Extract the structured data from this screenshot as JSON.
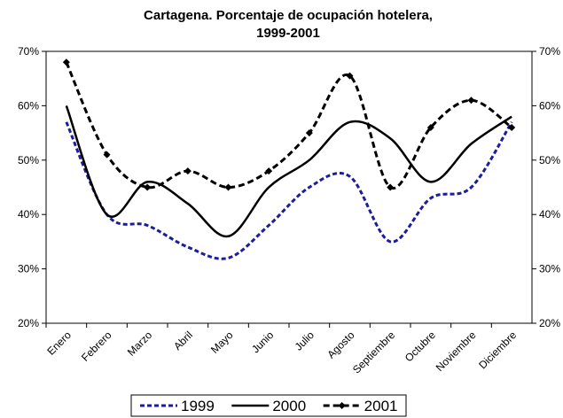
{
  "chart_data": {
    "type": "line",
    "title": [
      "Cartagena. Porcentaje de ocupación hotelera,",
      "1999-2001"
    ],
    "categories": [
      "Enero",
      "Febrero",
      "Marzo",
      "Abril",
      "Mayo",
      "Junio",
      "Julio",
      "Agosto",
      "Septiembre",
      "Octubre",
      "Noviembre",
      "Diciembre"
    ],
    "series": [
      {
        "name": "1999",
        "color": "#1c1c9e",
        "dash": "dashed",
        "values": [
          57,
          40,
          38,
          34,
          32,
          38,
          45,
          47,
          35,
          43,
          45,
          57
        ]
      },
      {
        "name": "2000",
        "color": "#000000",
        "dash": "solid",
        "values": [
          60,
          40,
          46,
          42,
          36,
          45,
          50,
          57,
          54,
          46,
          53,
          58
        ]
      },
      {
        "name": "2001",
        "color": "#000000",
        "dash": "dashed",
        "marker": "diamond",
        "values": [
          68,
          51,
          45,
          48,
          45,
          48,
          55,
          65.5,
          45,
          56,
          61,
          56
        ]
      }
    ],
    "ylim": [
      20,
      70
    ],
    "yticks": [
      {
        "value": 20,
        "label": "20%"
      },
      {
        "value": 30,
        "label": "30%"
      },
      {
        "value": 40,
        "label": "40%"
      },
      {
        "value": 50,
        "label": "50%"
      },
      {
        "value": 60,
        "label": "60%"
      },
      {
        "value": 70,
        "label": "70%"
      }
    ],
    "y2lim": [
      20,
      70
    ],
    "y2ticks": [
      {
        "value": 20,
        "label": "20%"
      },
      {
        "value": 30,
        "label": "30%"
      },
      {
        "value": 40,
        "label": "40%"
      },
      {
        "value": 50,
        "label": "50%"
      },
      {
        "value": 60,
        "label": "60%"
      },
      {
        "value": 70,
        "label": "70%"
      }
    ],
    "smooth": true,
    "legend": "bottom"
  }
}
